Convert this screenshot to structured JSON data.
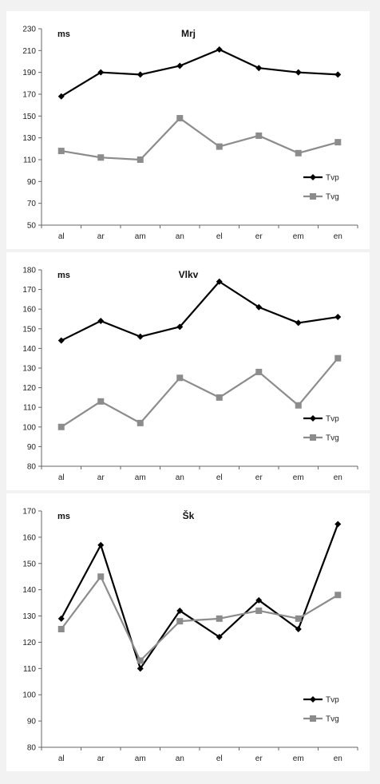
{
  "chart_data": [
    {
      "type": "line",
      "title": "Mrj",
      "unit": "ms",
      "categories": [
        "al",
        "ar",
        "am",
        "an",
        "el",
        "er",
        "em",
        "en"
      ],
      "ylim": [
        50,
        230
      ],
      "ystep": 20,
      "series": [
        {
          "name": "Tvp",
          "color": "#000000",
          "marker": "diamond",
          "values": [
            168,
            190,
            188,
            196,
            211,
            194,
            190,
            188
          ]
        },
        {
          "name": "Tvg",
          "color": "#8c8c8c",
          "marker": "square",
          "values": [
            118,
            112,
            110,
            148,
            122,
            132,
            116,
            126
          ]
        }
      ],
      "legend": "right"
    },
    {
      "type": "line",
      "title": "Vlkv",
      "unit": "ms",
      "categories": [
        "al",
        "ar",
        "am",
        "an",
        "el",
        "er",
        "em",
        "en"
      ],
      "ylim": [
        80,
        180
      ],
      "ystep": 10,
      "series": [
        {
          "name": "Tvp",
          "color": "#000000",
          "marker": "diamond",
          "values": [
            144,
            154,
            146,
            151,
            174,
            161,
            153,
            156
          ]
        },
        {
          "name": "Tvg",
          "color": "#8c8c8c",
          "marker": "square",
          "values": [
            100,
            113,
            102,
            125,
            115,
            128,
            111,
            135
          ]
        }
      ],
      "legend": "right"
    },
    {
      "type": "line",
      "title": "Šk",
      "unit": "ms",
      "categories": [
        "al",
        "ar",
        "am",
        "an",
        "el",
        "er",
        "em",
        "en"
      ],
      "ylim": [
        80,
        170
      ],
      "ystep": 10,
      "series": [
        {
          "name": "Tvp",
          "color": "#000000",
          "marker": "diamond",
          "values": [
            129,
            157,
            110,
            132,
            122,
            136,
            125,
            165
          ]
        },
        {
          "name": "Tvg",
          "color": "#8c8c8c",
          "marker": "square",
          "values": [
            125,
            145,
            113,
            128,
            129,
            132,
            129,
            138
          ]
        }
      ],
      "legend": "right"
    }
  ]
}
